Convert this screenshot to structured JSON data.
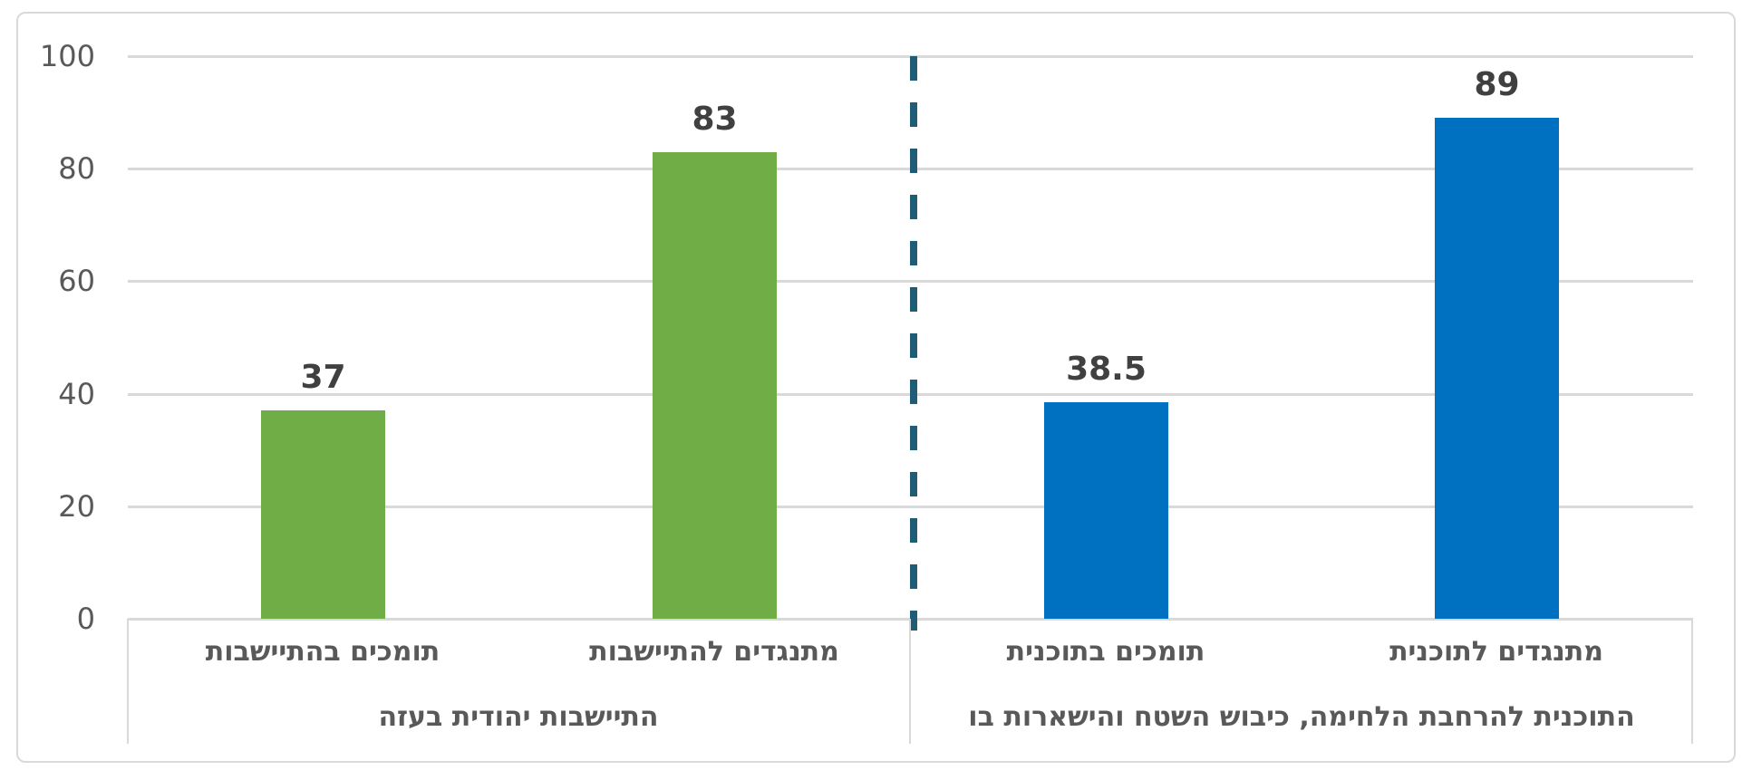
{
  "chart_data": {
    "type": "bar",
    "title": "",
    "xlabel": "",
    "ylabel": "",
    "ylim": [
      0,
      100
    ],
    "yticks": [
      100,
      80,
      60,
      40,
      20,
      0
    ],
    "ytick_labels": [
      "100",
      "80",
      "60",
      "40",
      "20",
      "0"
    ],
    "grid": true,
    "legend": false,
    "categories": [
      "תומכים בהתיישבות",
      "מתנגדים להתיישבות",
      "תומכים בתוכנית",
      "מתנגדים לתוכנית"
    ],
    "groups": [
      {
        "label": "התיישבות יהודית בעזה",
        "bar_color": "#70AD47",
        "bars": [
          {
            "category": "תומכים בהתיישבות",
            "value": 37,
            "value_label": "37"
          },
          {
            "category": "מתנגדים להתיישבות",
            "value": 83,
            "value_label": "83"
          }
        ]
      },
      {
        "label": "התוכנית להרחבת הלחימה, כיבוש השטח והישארות בו",
        "bar_color": "#0070C0",
        "bars": [
          {
            "category": "תומכים בתוכנית",
            "value": 38.5,
            "value_label": "38.5"
          },
          {
            "category": "מתנגדים לתוכנית",
            "value": 89,
            "value_label": "89"
          }
        ]
      }
    ],
    "separator": {
      "type": "vertical-dashed-line",
      "color": "#1F5C78",
      "position": "between-groups"
    },
    "colors": {
      "gridline": "#D9D9D9",
      "chart_border": "#D9D9D9",
      "axis_text": "#595959",
      "category_text": "#595959",
      "value_text": "#404040",
      "background": "#FFFFFF"
    }
  }
}
